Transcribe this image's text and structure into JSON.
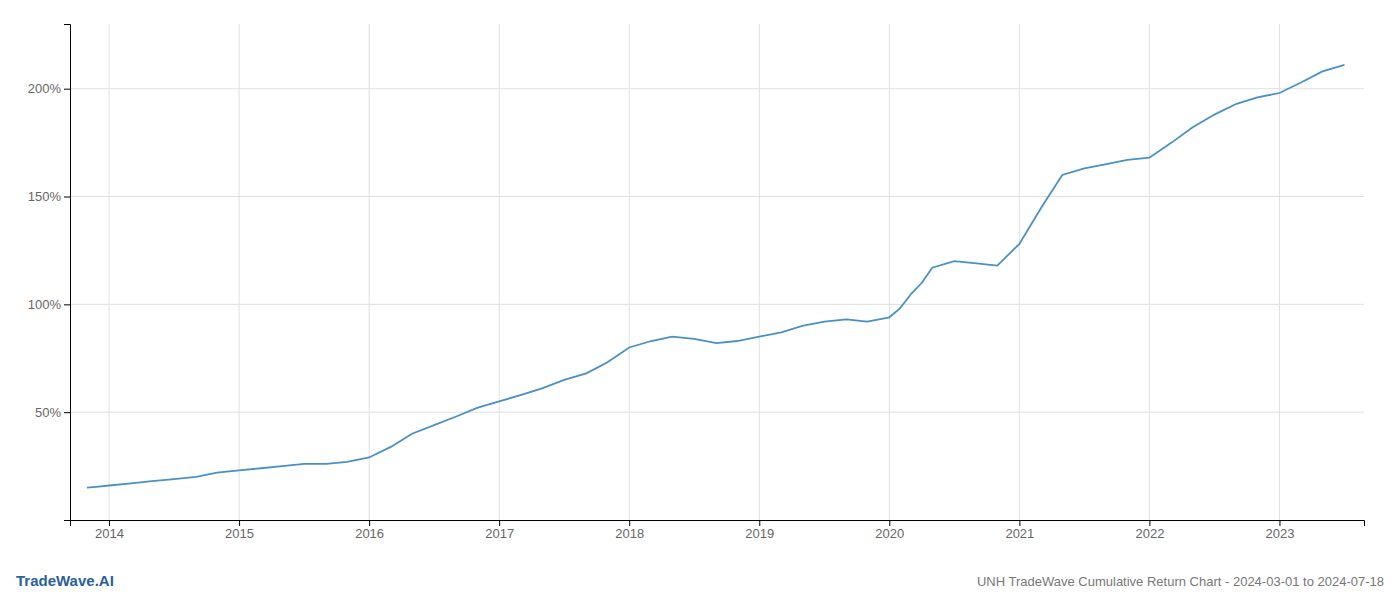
{
  "chart_data": {
    "type": "line",
    "title": "UNH TradeWave Cumulative Return Chart - 2024-03-01 to 2024-07-18",
    "annotations": [
      "TradeWave.AI"
    ],
    "color": "#4a90c4",
    "grid": true,
    "x": [
      2013.83,
      2013.92,
      2014.0,
      2014.17,
      2014.33,
      2014.5,
      2014.67,
      2014.83,
      2015.0,
      2015.17,
      2015.33,
      2015.5,
      2015.67,
      2015.83,
      2016.0,
      2016.17,
      2016.33,
      2016.5,
      2016.67,
      2016.83,
      2017.0,
      2017.17,
      2017.33,
      2017.5,
      2017.67,
      2017.83,
      2018.0,
      2018.17,
      2018.33,
      2018.5,
      2018.67,
      2018.83,
      2019.0,
      2019.17,
      2019.33,
      2019.5,
      2019.67,
      2019.83,
      2020.0,
      2020.08,
      2020.17,
      2020.25,
      2020.33,
      2020.5,
      2020.67,
      2020.83,
      2021.0,
      2021.17,
      2021.33,
      2021.5,
      2021.67,
      2021.83,
      2022.0,
      2022.17,
      2022.33,
      2022.5,
      2022.67,
      2022.83,
      2023.0,
      2023.17,
      2023.33,
      2023.5
    ],
    "values": [
      15,
      15.5,
      16,
      17,
      18,
      19,
      20,
      22,
      23,
      24,
      25,
      26,
      26,
      27,
      29,
      34,
      40,
      44,
      48,
      52,
      55,
      58,
      61,
      65,
      68,
      73,
      80,
      83,
      85,
      84,
      82,
      83,
      85,
      87,
      90,
      92,
      93,
      92,
      94,
      98,
      105,
      110,
      117,
      120,
      119,
      118,
      128,
      145,
      160,
      163,
      165,
      167,
      168,
      175,
      182,
      188,
      193,
      196,
      198,
      203,
      208,
      211
    ],
    "xlim": [
      2013.7,
      2023.65
    ],
    "xticks": [
      2014,
      2015,
      2016,
      2017,
      2018,
      2019,
      2020,
      2021,
      2022,
      2023
    ],
    "ylim": [
      0,
      230
    ],
    "yticks": [
      {
        "value": 50,
        "label": "50%"
      },
      {
        "value": 100,
        "label": "100%"
      },
      {
        "value": 150,
        "label": "150%"
      },
      {
        "value": 200,
        "label": "200%"
      }
    ]
  }
}
